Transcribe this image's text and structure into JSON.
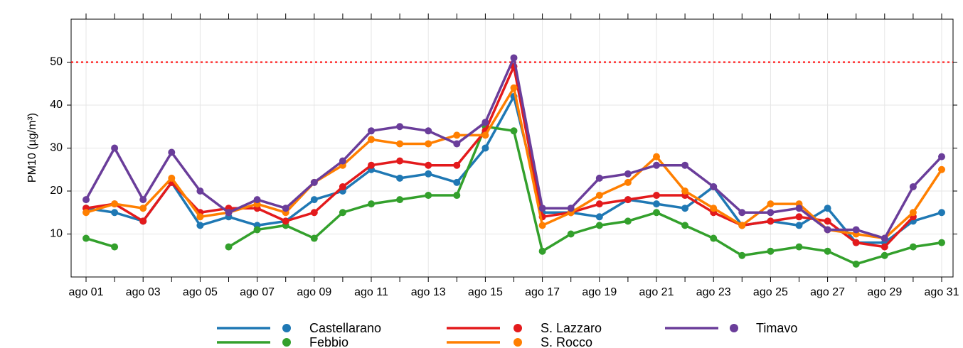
{
  "chart_data": {
    "type": "line",
    "y_label": "PM10 (µg/m³)",
    "categories": [
      "ago 01",
      null,
      "ago 03",
      null,
      "ago 05",
      null,
      "ago 07",
      null,
      "ago 09",
      null,
      "ago 11",
      null,
      "ago 13",
      null,
      "ago 15",
      null,
      "ago 17",
      null,
      "ago 19",
      null,
      "ago 21",
      null,
      "ago 23",
      null,
      "ago 25",
      null,
      "ago 27",
      null,
      "ago 29",
      null,
      "ago 31"
    ],
    "series": [
      {
        "name": "Castellarano",
        "color": "#1f78b4",
        "values": [
          16,
          15,
          13,
          22,
          12,
          14,
          12,
          13,
          18,
          20,
          25,
          23,
          24,
          22,
          30,
          42,
          15,
          15,
          14,
          18,
          17,
          16,
          21,
          12,
          13,
          12,
          16,
          8,
          8,
          13,
          15
        ]
      },
      {
        "name": "Febbio",
        "color": "#33a02c",
        "values": [
          9,
          7,
          null,
          null,
          null,
          7,
          11,
          12,
          9,
          15,
          17,
          18,
          19,
          19,
          35,
          34,
          6,
          10,
          12,
          13,
          15,
          12,
          9,
          5,
          6,
          7,
          6,
          3,
          5,
          7,
          8
        ]
      },
      {
        "name": "S. Lazzaro",
        "color": "#e31a1c",
        "values": [
          16,
          17,
          13,
          22,
          15,
          16,
          16,
          13,
          15,
          21,
          26,
          27,
          26,
          26,
          34,
          49,
          14,
          15,
          17,
          18,
          19,
          19,
          15,
          12,
          13,
          14,
          13,
          8,
          7,
          14,
          null
        ]
      },
      {
        "name": "S. Rocco",
        "color": "#ff7f00",
        "values": [
          15,
          17,
          16,
          23,
          14,
          15,
          17,
          15,
          22,
          26,
          32,
          31,
          31,
          33,
          33,
          44,
          12,
          15,
          19,
          22,
          28,
          20,
          16,
          12,
          17,
          17,
          11,
          10,
          9,
          15,
          25
        ]
      },
      {
        "name": "Timavo",
        "color": "#6a3d9a",
        "values": [
          18,
          30,
          18,
          29,
          20,
          15,
          18,
          16,
          22,
          27,
          34,
          35,
          34,
          31,
          36,
          51,
          16,
          16,
          23,
          24,
          26,
          26,
          21,
          15,
          15,
          16,
          11,
          11,
          9,
          21,
          28
        ]
      }
    ],
    "ylim": [
      0,
      60
    ],
    "yticks": [
      10,
      20,
      30,
      40,
      50
    ],
    "grid": true,
    "hline": {
      "value": 50,
      "color": "#ff0000"
    },
    "legend": "bottom"
  }
}
